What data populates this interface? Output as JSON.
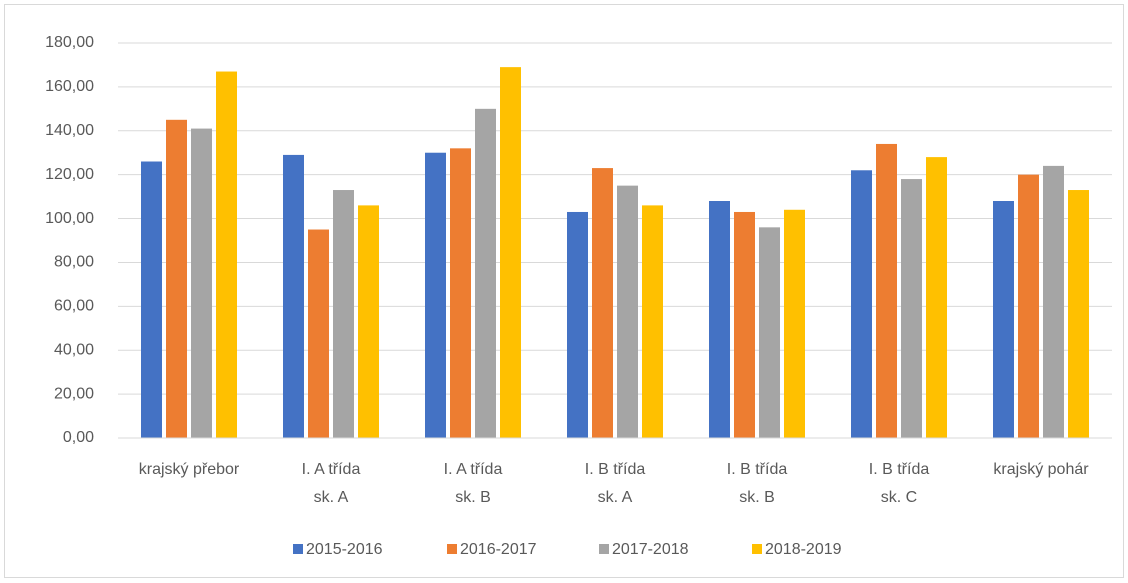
{
  "chart_data": {
    "type": "bar",
    "categories": [
      [
        "krajský přebor"
      ],
      [
        "I. A třída",
        "sk. A"
      ],
      [
        "I. A třída",
        "sk. B"
      ],
      [
        "I. B třída",
        "sk. A"
      ],
      [
        "I. B třída",
        "sk. B"
      ],
      [
        "I. B třída",
        "sk. C"
      ],
      [
        "krajský pohár"
      ]
    ],
    "series": [
      {
        "name": "2015-2016",
        "color": "#4472c4",
        "values": [
          126,
          129,
          130,
          103,
          108,
          122,
          108
        ]
      },
      {
        "name": "2016-2017",
        "color": "#ed7d31",
        "values": [
          145,
          95,
          132,
          123,
          103,
          134,
          120
        ]
      },
      {
        "name": "2017-2018",
        "color": "#a5a5a5",
        "values": [
          141,
          113,
          150,
          115,
          96,
          118,
          124
        ]
      },
      {
        "name": "2018-2019",
        "color": "#ffc000",
        "values": [
          167,
          106,
          169,
          106,
          104,
          128,
          113
        ]
      }
    ],
    "ylim": [
      0,
      180
    ],
    "yticks": [
      {
        "value": 0,
        "label": "0,00"
      },
      {
        "value": 20,
        "label": "20,00"
      },
      {
        "value": 40,
        "label": "40,00"
      },
      {
        "value": 60,
        "label": "60,00"
      },
      {
        "value": 80,
        "label": "80,00"
      },
      {
        "value": 100,
        "label": "100,00"
      },
      {
        "value": 120,
        "label": "120,00"
      },
      {
        "value": 140,
        "label": "140,00"
      },
      {
        "value": 160,
        "label": "160,00"
      },
      {
        "value": 180,
        "label": "180,00"
      }
    ],
    "grid": true,
    "legend": "bottom"
  }
}
